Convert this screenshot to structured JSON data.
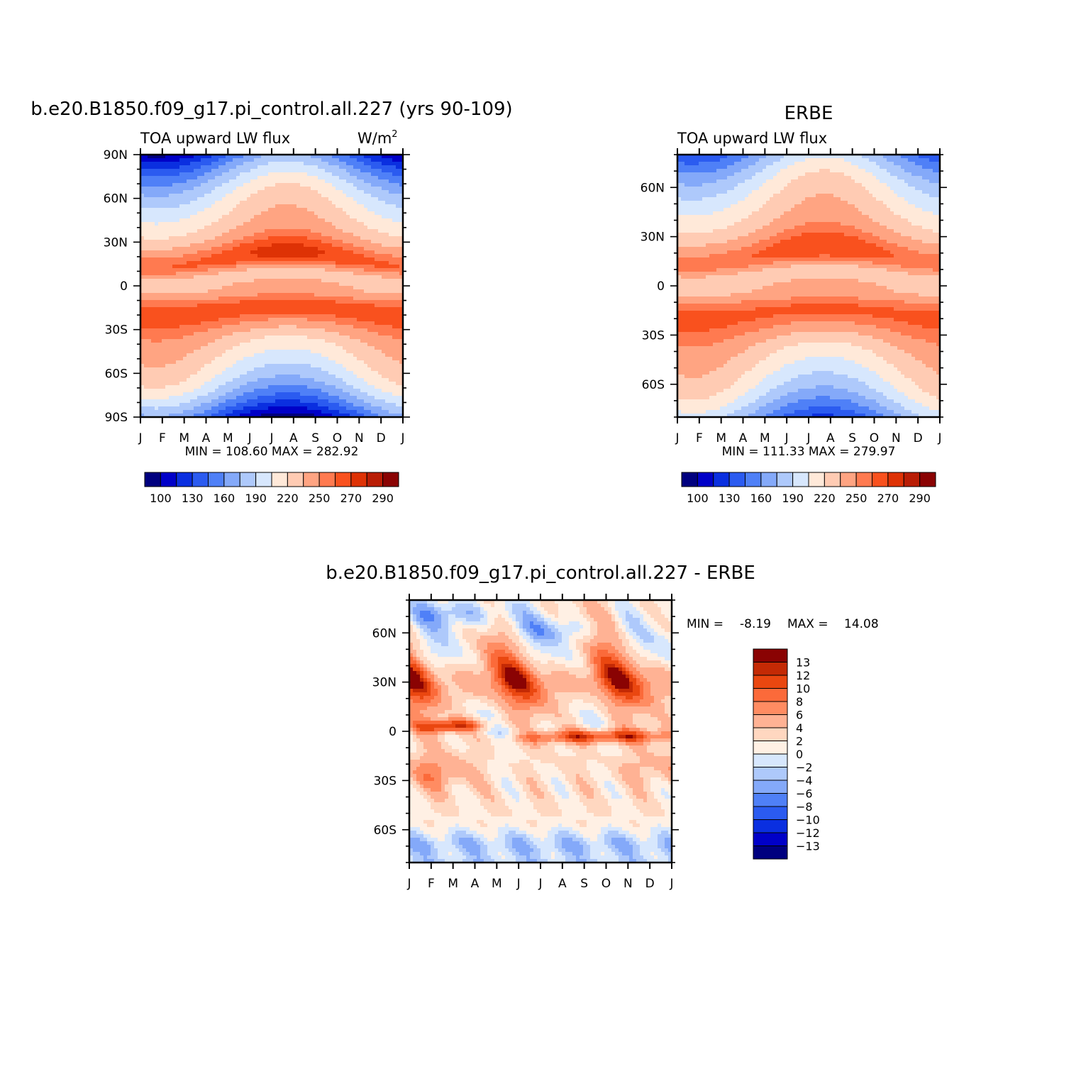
{
  "colors": {
    "levels_main": [
      "#00007f",
      "#0000c8",
      "#0a2fe0",
      "#2b5bf0",
      "#4f80f7",
      "#84a9f9",
      "#aec9fb",
      "#d7e7fd",
      "#ffe9d9",
      "#ffcbb3",
      "#ffa482",
      "#ff7a50",
      "#f9511e",
      "#de3205",
      "#b91d05",
      "#8a0303"
    ],
    "levels_diff": [
      "#00007f",
      "#0000c8",
      "#0a2fe0",
      "#2b5bf0",
      "#4f80f7",
      "#84a9f9",
      "#aec9fb",
      "#d7e7fd",
      "#fff0e4",
      "#ffd7c0",
      "#ffb294",
      "#ff8c62",
      "#fb6a3a",
      "#ea4710",
      "#c42a05",
      "#8a0303"
    ]
  },
  "chart_data": [
    {
      "type": "heatmap",
      "title": "b.e20.B1850.f09_g17.pi_control.all.227 (yrs 90-109)",
      "subtitle_left": "TOA upward LW flux",
      "units_label": "W/m",
      "units_sup": "2",
      "x_ticks": [
        "J",
        "F",
        "M",
        "A",
        "M",
        "J",
        "J",
        "A",
        "S",
        "O",
        "N",
        "D",
        "J"
      ],
      "y_ticks": [
        "90N",
        "60N",
        "30N",
        "0",
        "30S",
        "60S",
        "90S"
      ],
      "ylim": [
        -90,
        90
      ],
      "stats": "MIN =  108.60  MAX =  282.92",
      "min": 108.6,
      "max": 282.92,
      "colorbar_labels": [
        "100",
        "130",
        "160",
        "190",
        "220",
        "250",
        "270",
        "290"
      ],
      "levels": [
        100,
        115,
        130,
        145,
        160,
        175,
        190,
        205,
        220,
        235,
        250,
        260,
        270,
        280,
        290
      ]
    },
    {
      "type": "heatmap",
      "title": "ERBE",
      "subtitle_left": "TOA upward LW flux",
      "x_ticks": [
        "J",
        "F",
        "M",
        "A",
        "M",
        "J",
        "J",
        "A",
        "S",
        "O",
        "N",
        "D",
        "J"
      ],
      "y_ticks": [
        "60N",
        "30N",
        "0",
        "30S",
        "60S"
      ],
      "ylim": [
        -80,
        80
      ],
      "stats": "MIN =  111.33  MAX =  279.97",
      "min": 111.33,
      "max": 279.97,
      "colorbar_labels": [
        "100",
        "130",
        "160",
        "190",
        "220",
        "250",
        "270",
        "290"
      ],
      "levels": [
        100,
        115,
        130,
        145,
        160,
        175,
        190,
        205,
        220,
        235,
        250,
        260,
        270,
        280,
        290
      ]
    },
    {
      "type": "heatmap",
      "title": "b.e20.B1850.f09_g17.pi_control.all.227  -  ERBE",
      "x_ticks": [
        "J",
        "F",
        "M",
        "A",
        "M",
        "J",
        "J",
        "A",
        "S",
        "O",
        "N",
        "D",
        "J"
      ],
      "y_ticks": [
        "60N",
        "30N",
        "0",
        "30S",
        "60S"
      ],
      "ylim": [
        -80,
        80
      ],
      "stats_min_label": "MIN =",
      "stats_min": "-8.19",
      "stats_max_label": "MAX =",
      "stats_max": "14.08",
      "min": -8.19,
      "max": 14.08,
      "colorbar_labels": [
        "13",
        "12",
        "10",
        "8",
        "6",
        "4",
        "2",
        "0",
        "-2",
        "-4",
        "-6",
        "-8",
        "-10",
        "-12",
        "-13"
      ],
      "levels": [
        -13,
        -12,
        -10,
        -8,
        -6,
        -4,
        -2,
        0,
        2,
        4,
        6,
        8,
        10,
        12,
        13
      ]
    }
  ]
}
